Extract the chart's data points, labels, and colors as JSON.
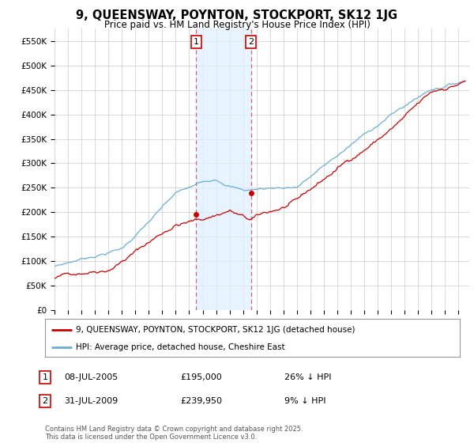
{
  "title": "9, QUEENSWAY, POYNTON, STOCKPORT, SK12 1JG",
  "subtitle": "Price paid vs. HM Land Registry's House Price Index (HPI)",
  "ylim": [
    0,
    575000
  ],
  "yticks": [
    0,
    50000,
    100000,
    150000,
    200000,
    250000,
    300000,
    350000,
    400000,
    450000,
    500000,
    550000
  ],
  "ytick_labels": [
    "£0",
    "£50K",
    "£100K",
    "£150K",
    "£200K",
    "£250K",
    "£300K",
    "£350K",
    "£400K",
    "£450K",
    "£500K",
    "£550K"
  ],
  "hpi_color": "#6baed6",
  "price_color": "#cc0000",
  "sale1_date_num": 2005.52,
  "sale1_price": 195000,
  "sale2_date_num": 2009.58,
  "sale2_price": 239950,
  "sale1_date_str": "08-JUL-2005",
  "sale2_date_str": "31-JUL-2009",
  "sale1_pct": "26% ↓ HPI",
  "sale2_pct": "9% ↓ HPI",
  "legend_line1": "9, QUEENSWAY, POYNTON, STOCKPORT, SK12 1JG (detached house)",
  "legend_line2": "HPI: Average price, detached house, Cheshire East",
  "footer": "Contains HM Land Registry data © Crown copyright and database right 2025.\nThis data is licensed under the Open Government Licence v3.0.",
  "xmin": 1995.0,
  "xmax": 2025.8,
  "background_color": "#ffffff",
  "grid_color": "#cccccc",
  "shade_color": "#ddeeff",
  "vline_color": "#cc6677"
}
